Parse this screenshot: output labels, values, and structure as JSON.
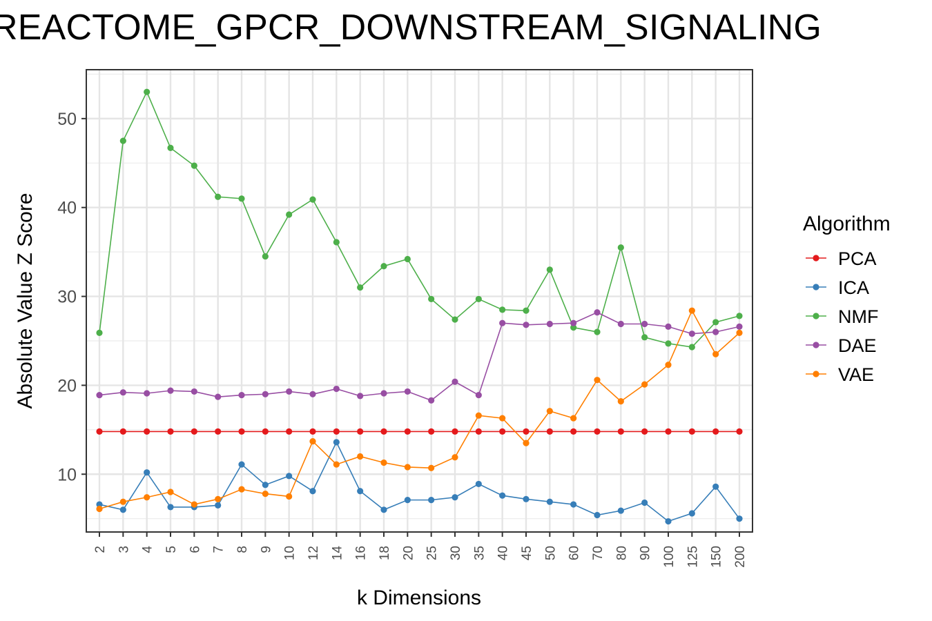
{
  "chart_data": {
    "type": "line",
    "title": "REACTOME_GPCR_DOWNSTREAM_SIGNALING",
    "xlabel": "k Dimensions",
    "ylabel": "Absolute Value Z Score",
    "categories": [
      "2",
      "3",
      "4",
      "5",
      "6",
      "7",
      "8",
      "9",
      "10",
      "12",
      "14",
      "16",
      "18",
      "20",
      "25",
      "30",
      "35",
      "40",
      "45",
      "50",
      "60",
      "70",
      "80",
      "90",
      "100",
      "125",
      "150",
      "200"
    ],
    "y_ticks": [
      10,
      20,
      30,
      40,
      50
    ],
    "ylim": [
      3.5,
      55.5
    ],
    "grid": true,
    "legend": {
      "title": "Algorithm",
      "position": "right"
    },
    "series": [
      {
        "name": "PCA",
        "color": "#e41a1c",
        "values": [
          14.8,
          14.8,
          14.8,
          14.8,
          14.8,
          14.8,
          14.8,
          14.8,
          14.8,
          14.8,
          14.8,
          14.8,
          14.8,
          14.8,
          14.8,
          14.8,
          14.8,
          14.8,
          14.8,
          14.8,
          14.8,
          14.8,
          14.8,
          14.8,
          14.8,
          14.8,
          14.8,
          14.8
        ]
      },
      {
        "name": "ICA",
        "color": "#377eb8",
        "values": [
          6.6,
          6.0,
          10.2,
          6.3,
          6.3,
          6.5,
          11.1,
          8.8,
          9.8,
          8.1,
          13.6,
          8.1,
          6.0,
          7.1,
          7.1,
          7.4,
          8.9,
          7.6,
          7.2,
          6.9,
          6.6,
          5.4,
          5.9,
          6.8,
          4.7,
          5.6,
          8.6,
          5.0
        ]
      },
      {
        "name": "NMF",
        "color": "#4daf4a",
        "values": [
          25.9,
          47.5,
          53.0,
          46.7,
          44.7,
          41.2,
          41.0,
          34.5,
          39.2,
          40.9,
          36.1,
          31.0,
          33.4,
          34.2,
          29.7,
          27.4,
          29.7,
          28.5,
          28.4,
          33.0,
          26.5,
          26.0,
          35.5,
          25.4,
          24.7,
          24.3,
          27.1,
          27.8
        ]
      },
      {
        "name": "DAE",
        "color": "#984ea3",
        "values": [
          18.9,
          19.2,
          19.1,
          19.4,
          19.3,
          18.7,
          18.9,
          19.0,
          19.3,
          19.0,
          19.6,
          18.8,
          19.1,
          19.3,
          18.3,
          20.4,
          18.9,
          27.0,
          26.8,
          26.9,
          27.0,
          28.2,
          26.9,
          26.9,
          26.6,
          25.8,
          26.0,
          26.6
        ]
      },
      {
        "name": "VAE",
        "color": "#ff7f00",
        "values": [
          6.1,
          6.9,
          7.4,
          8.0,
          6.6,
          7.2,
          8.3,
          7.8,
          7.5,
          13.7,
          11.1,
          12.0,
          11.3,
          10.8,
          10.7,
          11.9,
          16.6,
          16.3,
          13.5,
          17.1,
          16.3,
          20.6,
          18.2,
          20.1,
          22.3,
          28.4,
          23.5,
          25.9
        ]
      }
    ]
  }
}
